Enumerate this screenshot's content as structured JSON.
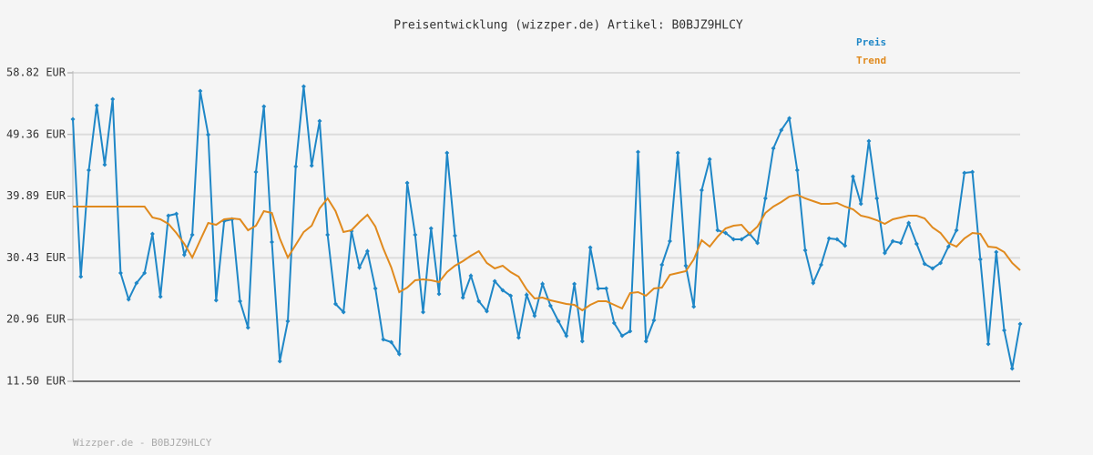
{
  "chart_data": {
    "type": "line",
    "title": "Preisentwicklung (wizzper.de) Artikel: B0BJZ9HLCY",
    "footer": "Wizzper.de - B0BJZ9HLCY",
    "ylim": [
      11.5,
      58.82
    ],
    "yticks": [
      {
        "value": 11.5,
        "label": "11.50 EUR"
      },
      {
        "value": 20.96,
        "label": "20.96 EUR"
      },
      {
        "value": 30.43,
        "label": "30.43 EUR"
      },
      {
        "value": 39.89,
        "label": "39.89 EUR"
      },
      {
        "value": 49.36,
        "label": "49.36 EUR"
      },
      {
        "value": 58.82,
        "label": "58.82 EUR"
      }
    ],
    "grid": true,
    "legend": "top-right",
    "series": [
      {
        "name": "Preis",
        "color": "#1f87c7",
        "markers": true,
        "values": [
          51.7,
          27.55,
          43.88,
          53.8,
          44.72,
          54.77,
          28.11,
          24.06,
          26.58,
          28.11,
          34.11,
          24.48,
          36.91,
          37.18,
          30.9,
          33.97,
          56.03,
          49.33,
          23.92,
          36.07,
          36.35,
          23.78,
          19.74,
          43.61,
          53.66,
          32.86,
          14.57,
          20.71,
          44.44,
          56.73,
          44.58,
          51.42,
          33.97,
          23.37,
          22.11,
          34.53,
          28.95,
          31.46,
          25.74,
          17.92,
          17.5,
          15.69,
          41.93,
          33.97,
          22.11,
          34.95,
          24.9,
          46.54,
          33.83,
          24.34,
          27.69,
          23.78,
          22.25,
          26.85,
          25.46,
          24.62,
          18.2,
          24.76,
          21.55,
          26.44,
          23.09,
          20.71,
          18.48,
          26.44,
          17.64,
          32.02,
          25.74,
          25.74,
          20.43,
          18.48,
          19.18,
          46.68,
          17.64,
          20.85,
          29.37,
          33.0,
          46.54,
          29.23,
          22.95,
          40.81,
          45.56,
          34.67,
          34.25,
          33.28,
          33.28,
          34.11,
          32.72,
          39.56,
          47.24,
          50.03,
          51.84,
          43.88,
          31.6,
          26.58,
          29.37,
          33.42,
          33.28,
          32.3,
          42.91,
          38.72,
          48.35,
          39.56,
          31.18,
          33.0,
          32.72,
          35.79,
          32.58,
          29.51,
          28.81,
          29.65,
          32.16,
          34.67,
          43.47,
          43.61,
          30.21,
          17.22,
          31.32,
          19.32,
          13.45,
          20.29
        ]
      },
      {
        "name": "Trend",
        "color": "#e08a1e",
        "markers": false,
        "values": [
          38.3,
          38.3,
          38.3,
          38.3,
          38.3,
          38.3,
          38.3,
          38.3,
          38.3,
          38.3,
          36.63,
          36.35,
          35.65,
          34.25,
          32.58,
          30.48,
          33.14,
          35.79,
          35.51,
          36.35,
          36.49,
          36.35,
          34.67,
          35.37,
          37.6,
          37.32,
          33.42,
          30.48,
          32.44,
          34.39,
          35.37,
          38.02,
          39.56,
          37.6,
          34.39,
          34.67,
          35.93,
          37.04,
          35.23,
          31.88,
          28.95,
          25.18,
          25.88,
          26.99,
          27.13,
          26.99,
          26.72,
          28.25,
          29.23,
          29.93,
          30.76,
          31.46,
          29.65,
          28.81,
          29.23,
          28.25,
          27.55,
          25.6,
          24.2,
          24.34,
          23.92,
          23.64,
          23.37,
          23.23,
          22.39,
          23.23,
          23.78,
          23.78,
          23.23,
          22.67,
          25.04,
          25.18,
          24.62,
          25.74,
          25.88,
          27.83,
          28.11,
          28.39,
          30.21,
          33.14,
          32.16,
          33.7,
          34.95,
          35.37,
          35.51,
          34.11,
          35.23,
          37.32,
          38.3,
          39.0,
          39.84,
          40.12,
          39.56,
          39.14,
          38.72,
          38.72,
          38.86,
          38.3,
          37.88,
          36.91,
          36.63,
          36.21,
          35.65,
          36.35,
          36.63,
          36.91,
          36.91,
          36.49,
          35.09,
          34.25,
          32.72,
          32.16,
          33.42,
          34.25,
          34.11,
          32.16,
          32.02,
          31.32,
          29.65,
          28.53
        ]
      }
    ]
  }
}
